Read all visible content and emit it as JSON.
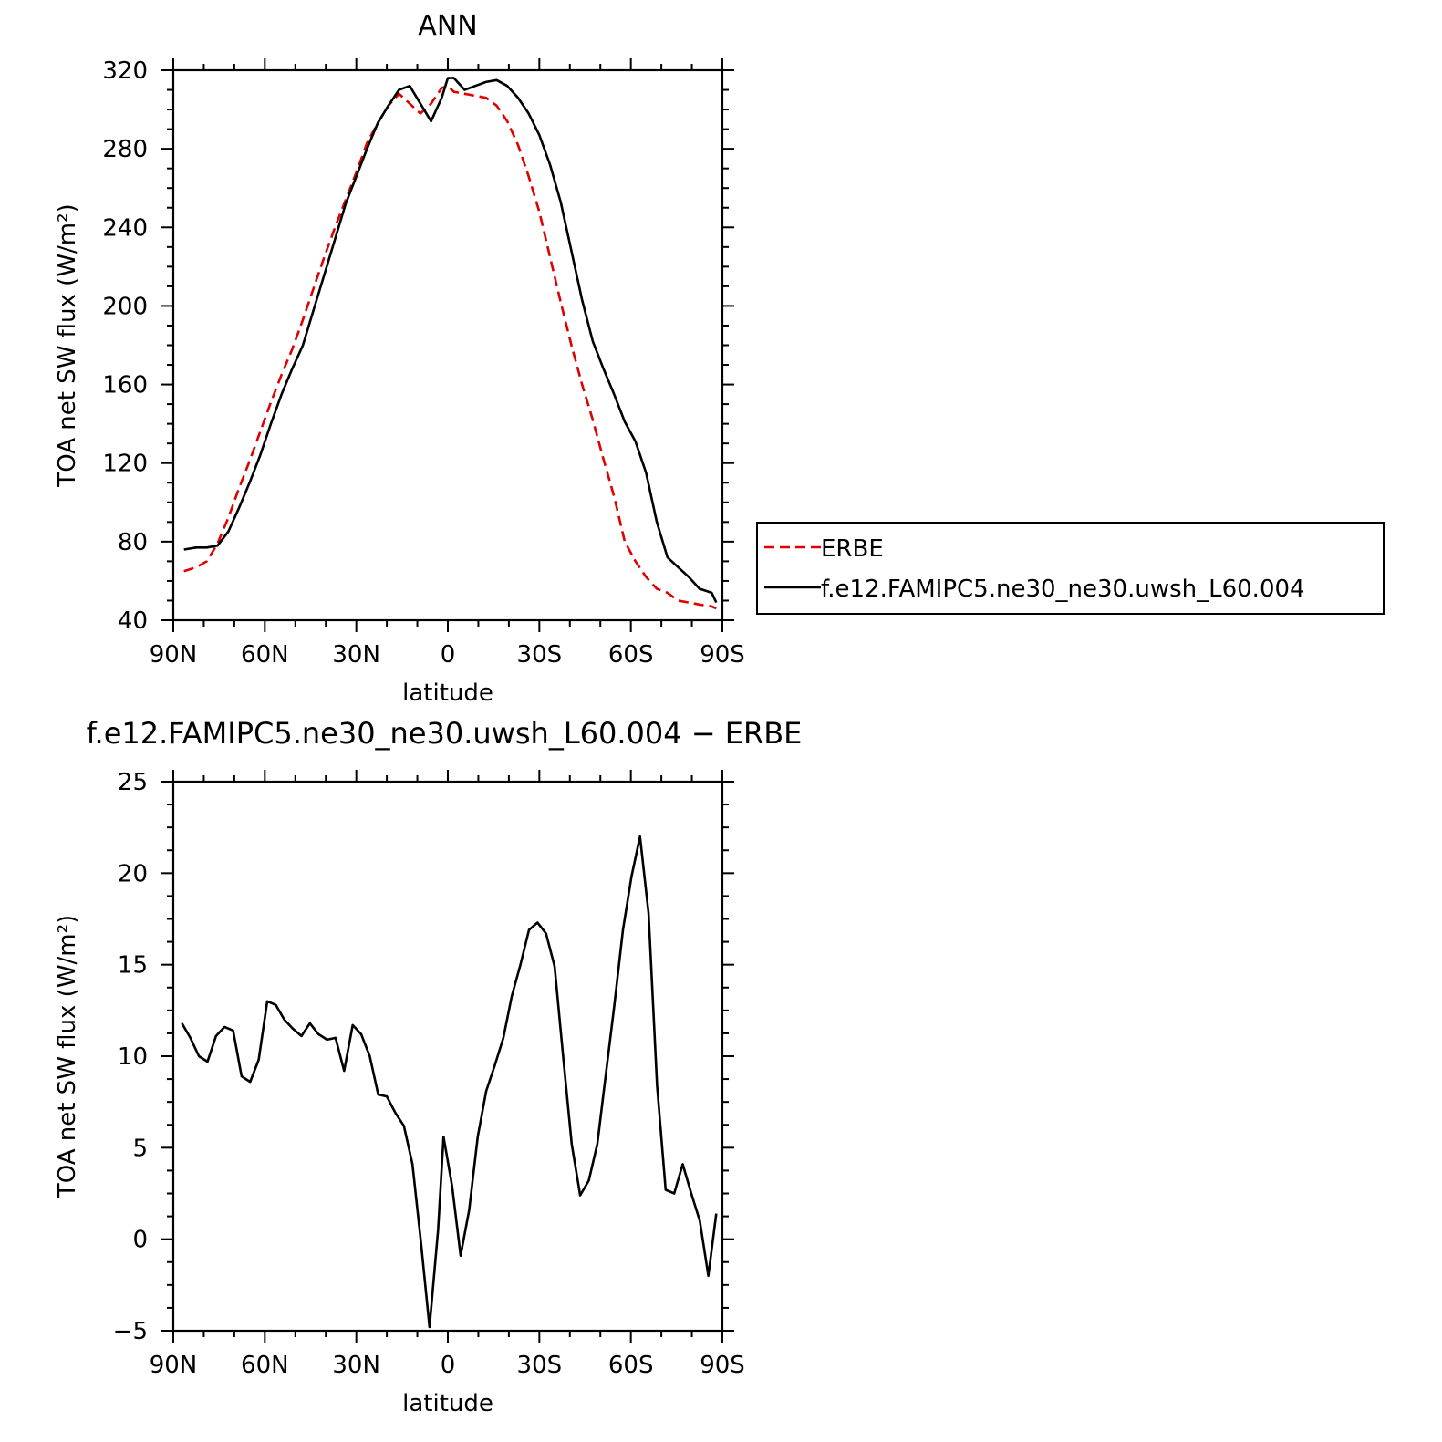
{
  "chart_data": [
    {
      "type": "line",
      "title": "ANN",
      "xlabel": "latitude",
      "ylabel": "TOA net SW flux (W/m²)",
      "xlim": [
        90,
        -90
      ],
      "ylim": [
        40,
        320
      ],
      "x_ticks": [
        "90N",
        "60N",
        "30N",
        "0",
        "30S",
        "60S",
        "90S"
      ],
      "y_ticks": [
        "40",
        "80",
        "120",
        "160",
        "200",
        "240",
        "280",
        "320"
      ],
      "legend_position": "right",
      "series": [
        {
          "name": "ERBE",
          "color": "#e00000",
          "dash": "dashed",
          "x": [
            86.5,
            82.5,
            79,
            75.5,
            72,
            68.5,
            65,
            61.5,
            58,
            54.5,
            51,
            47.5,
            44,
            40.5,
            37,
            33.5,
            30,
            26.5,
            23,
            19.5,
            16,
            12.5,
            9,
            5.5,
            2,
            0,
            -2,
            -5.5,
            -9,
            -12.5,
            -16,
            -19.5,
            -23,
            -26.5,
            -30,
            -33.5,
            -37,
            -40.5,
            -44,
            -47.5,
            -51,
            -54.5,
            -58,
            -61.5,
            -65,
            -68.5,
            -72,
            -75.5,
            -79,
            -82.5,
            -86.5,
            -88
          ],
          "y": [
            65,
            67,
            70,
            79,
            92,
            107,
            121,
            136,
            151,
            165,
            178,
            193,
            209,
            225,
            240,
            254,
            268,
            283,
            293,
            302,
            308,
            303,
            298,
            303,
            311,
            312,
            309,
            308,
            307,
            306,
            302,
            294,
            282,
            266,
            248,
            225,
            202,
            180,
            160,
            142,
            122,
            103,
            80,
            70,
            62,
            56,
            54,
            50,
            49,
            48,
            47,
            46
          ]
        },
        {
          "name": "f.e12.FAMIPC5.ne30_ne30.uwsh_L60.004",
          "color": "#000000",
          "dash": "solid",
          "x": [
            86.5,
            82.5,
            79,
            75.5,
            72,
            68.5,
            65,
            61.5,
            58,
            54.5,
            51,
            47.5,
            44,
            40.5,
            37,
            33.5,
            30,
            26.5,
            23,
            19.5,
            16,
            12.5,
            9,
            5.5,
            2,
            0,
            -2,
            -5.5,
            -9,
            -12.5,
            -16,
            -19.5,
            -23,
            -26.5,
            -30,
            -33.5,
            -37,
            -40.5,
            -44,
            -47.5,
            -51,
            -54.5,
            -58,
            -61.5,
            -65,
            -68.5,
            -72,
            -75.5,
            -79,
            -82.5,
            -86.5,
            -88
          ],
          "y": [
            76,
            77,
            77,
            78,
            85,
            97,
            110,
            124,
            140,
            155,
            168,
            180,
            198,
            216,
            234,
            252,
            266,
            280,
            293,
            302,
            310,
            312,
            303,
            294,
            306,
            316,
            316,
            310,
            312,
            314,
            315,
            312,
            306,
            298,
            287,
            272,
            253,
            228,
            203,
            182,
            168,
            155,
            141,
            131,
            115,
            90,
            72,
            67,
            62,
            56,
            54,
            49
          ]
        }
      ]
    },
    {
      "type": "line",
      "title": "f.e12.FAMIPC5.ne30_ne30.uwsh_L60.004 − ERBE",
      "xlabel": "latitude",
      "ylabel": "TOA net SW flux (W/m²)",
      "xlim": [
        90,
        -90
      ],
      "ylim": [
        -5,
        25
      ],
      "x_ticks": [
        "90N",
        "60N",
        "30N",
        "0",
        "30S",
        "60S",
        "90S"
      ],
      "y_ticks": [
        "−5",
        "0",
        "5",
        "10",
        "15",
        "20",
        "25"
      ],
      "series": [
        {
          "color": "#000000",
          "dash": "solid",
          "x": [
            87.2,
            84.4,
            81.6,
            78.8,
            76,
            73.2,
            70.4,
            67.6,
            64.8,
            62,
            59.2,
            56.4,
            53.6,
            50.8,
            48,
            45.2,
            42.4,
            39.6,
            36.8,
            34,
            31.2,
            28.4,
            25.6,
            22.8,
            20,
            17.2,
            14.4,
            11.6,
            8.8,
            6,
            3.2,
            1.4,
            -1.4,
            -4.2,
            -7,
            -9.8,
            -12.6,
            -15.4,
            -18.2,
            -21,
            -23.8,
            -26.6,
            -29.4,
            -32.2,
            -35,
            -37.8,
            -40.6,
            -43.4,
            -46.2,
            -49,
            -51.8,
            -54.6,
            -57.4,
            -60.2,
            -63,
            -65.8,
            -68.6,
            -71.4,
            -74.2,
            -77,
            -79.8,
            -82.6,
            -85.4,
            -88
          ],
          "y": [
            11.8,
            11.0,
            10.0,
            9.7,
            11.1,
            11.6,
            11.4,
            8.9,
            8.6,
            9.8,
            13.0,
            12.8,
            12.0,
            11.5,
            11.1,
            11.8,
            11.2,
            10.9,
            11.0,
            9.2,
            11.7,
            11.2,
            10.0,
            7.9,
            7.8,
            6.9,
            6.2,
            4.1,
            -0.2,
            -4.8,
            0.5,
            5.6,
            2.9,
            -0.9,
            1.6,
            5.6,
            8.1,
            9.5,
            11.0,
            13.3,
            15.0,
            16.9,
            17.3,
            16.7,
            14.9,
            10.0,
            5.2,
            2.4,
            3.2,
            5.2,
            9.0,
            12.8,
            16.9,
            19.8,
            22.0,
            17.8,
            8.4,
            2.7,
            2.5,
            4.1,
            2.5,
            1.0,
            -2.0,
            1.4
          ]
        }
      ]
    }
  ]
}
